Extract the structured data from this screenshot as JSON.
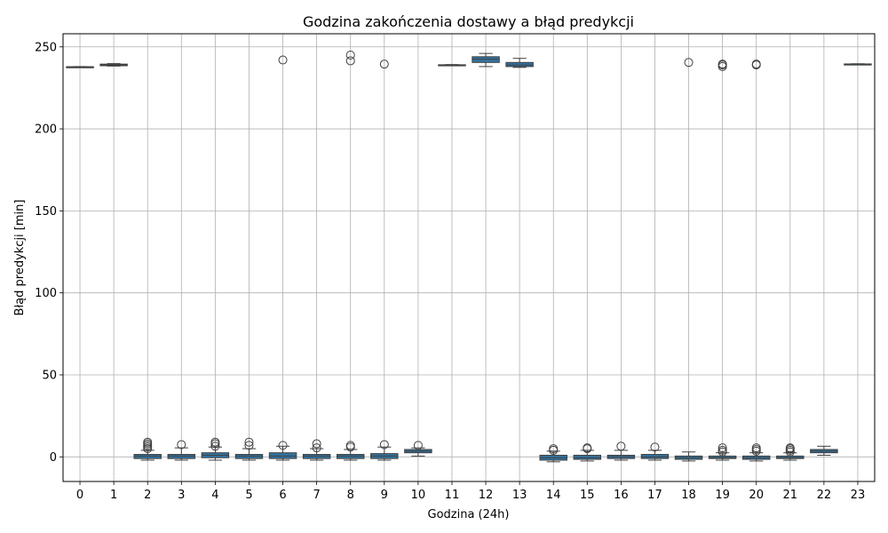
{
  "chart_data": {
    "type": "box",
    "title": "Godzina zakończenia dostawy a błąd predykcji",
    "xlabel": "Godzina (24h)",
    "ylabel": "Błąd predykcji [min]",
    "ylim": [
      -15,
      258
    ],
    "yticks": [
      0,
      50,
      100,
      150,
      200,
      250
    ],
    "grid": true,
    "box_color": "#3274a1",
    "categories": [
      "0",
      "1",
      "2",
      "3",
      "4",
      "5",
      "6",
      "7",
      "8",
      "9",
      "10",
      "11",
      "12",
      "13",
      "14",
      "15",
      "16",
      "17",
      "18",
      "19",
      "20",
      "21",
      "22",
      "23"
    ],
    "boxes": [
      {
        "category": "0",
        "whisker_low": 237.5,
        "q1": 237.7,
        "median": 237.8,
        "q3": 237.9,
        "whisker_high": 238.0,
        "outliers": []
      },
      {
        "category": "1",
        "whisker_low": 238.3,
        "q1": 238.5,
        "median": 239.0,
        "q3": 239.5,
        "whisker_high": 239.8,
        "outliers": []
      },
      {
        "category": "2",
        "whisker_low": -2.0,
        "q1": -1.0,
        "median": 0.5,
        "q3": 1.5,
        "whisker_high": 4.0,
        "outliers": [
          5.0,
          6.0,
          7.0,
          8.0,
          9.0
        ]
      },
      {
        "category": "3",
        "whisker_low": -2.0,
        "q1": -1.0,
        "median": 0.5,
        "q3": 1.5,
        "whisker_high": 5.5,
        "outliers": [
          7.5
        ]
      },
      {
        "category": "4",
        "whisker_low": -2.0,
        "q1": -0.5,
        "median": 1.0,
        "q3": 2.5,
        "whisker_high": 6.0,
        "outliers": [
          6.5,
          8.0,
          9.0
        ]
      },
      {
        "category": "5",
        "whisker_low": -2.0,
        "q1": -1.0,
        "median": 0.5,
        "q3": 1.5,
        "whisker_high": 5.0,
        "outliers": [
          7.0,
          9.0
        ]
      },
      {
        "category": "6",
        "whisker_low": -2.0,
        "q1": -1.0,
        "median": 0.5,
        "q3": 2.5,
        "whisker_high": 6.5,
        "outliers": [
          7.0,
          242.0
        ]
      },
      {
        "category": "7",
        "whisker_low": -2.0,
        "q1": -1.0,
        "median": 0.5,
        "q3": 1.5,
        "whisker_high": 5.0,
        "outliers": [
          5.5,
          8.0
        ]
      },
      {
        "category": "8",
        "whisker_low": -2.0,
        "q1": -1.0,
        "median": 0.5,
        "q3": 1.5,
        "whisker_high": 4.5,
        "outliers": [
          6.0,
          7.0,
          241.5,
          245.0
        ]
      },
      {
        "category": "9",
        "whisker_low": -2.0,
        "q1": -1.0,
        "median": 0.5,
        "q3": 2.0,
        "whisker_high": 6.0,
        "outliers": [
          7.5,
          239.5
        ]
      },
      {
        "category": "10",
        "whisker_low": 0.5,
        "q1": 2.5,
        "median": 3.5,
        "q3": 4.5,
        "whisker_high": 5.5,
        "outliers": [
          7.0
        ]
      },
      {
        "category": "11",
        "whisker_low": 238.8,
        "q1": 238.9,
        "median": 239.0,
        "q3": 239.1,
        "whisker_high": 239.2,
        "outliers": []
      },
      {
        "category": "12",
        "whisker_low": 238.0,
        "q1": 240.5,
        "median": 242.5,
        "q3": 244.0,
        "whisker_high": 246.0,
        "outliers": []
      },
      {
        "category": "13",
        "whisker_low": 237.5,
        "q1": 238.0,
        "median": 239.0,
        "q3": 240.5,
        "whisker_high": 243.0,
        "outliers": []
      },
      {
        "category": "14",
        "whisker_low": -3.0,
        "q1": -2.0,
        "median": -0.5,
        "q3": 1.0,
        "whisker_high": 3.5,
        "outliers": [
          4.0,
          5.0
        ]
      },
      {
        "category": "15",
        "whisker_low": -2.5,
        "q1": -1.5,
        "median": -0.5,
        "q3": 1.0,
        "whisker_high": 4.0,
        "outliers": [
          5.0,
          5.5
        ]
      },
      {
        "category": "16",
        "whisker_low": -2.0,
        "q1": -1.0,
        "median": 0.0,
        "q3": 1.0,
        "whisker_high": 4.0,
        "outliers": [
          6.5
        ]
      },
      {
        "category": "17",
        "whisker_low": -2.0,
        "q1": -1.0,
        "median": 0.0,
        "q3": 1.5,
        "whisker_high": 4.0,
        "outliers": [
          6.0
        ]
      },
      {
        "category": "18",
        "whisker_low": -2.5,
        "q1": -1.5,
        "median": -0.5,
        "q3": 0.5,
        "whisker_high": 3.0,
        "outliers": [
          240.5
        ]
      },
      {
        "category": "19",
        "whisker_low": -2.0,
        "q1": -1.0,
        "median": -0.5,
        "q3": 0.5,
        "whisker_high": 2.5,
        "outliers": [
          3.0,
          4.0,
          5.5,
          238.0,
          239.0,
          239.5
        ]
      },
      {
        "category": "20",
        "whisker_low": -2.5,
        "q1": -1.5,
        "median": -0.5,
        "q3": 0.5,
        "whisker_high": 2.5,
        "outliers": [
          3.5,
          4.5,
          5.5,
          239.0,
          239.5
        ]
      },
      {
        "category": "21",
        "whisker_low": -2.0,
        "q1": -1.0,
        "median": -0.5,
        "q3": 0.5,
        "whisker_high": 2.5,
        "outliers": [
          3.0,
          4.0,
          5.0,
          5.5
        ]
      },
      {
        "category": "22",
        "whisker_low": 1.0,
        "q1": 2.5,
        "median": 3.5,
        "q3": 4.5,
        "whisker_high": 6.5,
        "outliers": []
      },
      {
        "category": "23",
        "whisker_low": 239.3,
        "q1": 239.4,
        "median": 239.5,
        "q3": 239.6,
        "whisker_high": 239.7,
        "outliers": []
      }
    ]
  }
}
